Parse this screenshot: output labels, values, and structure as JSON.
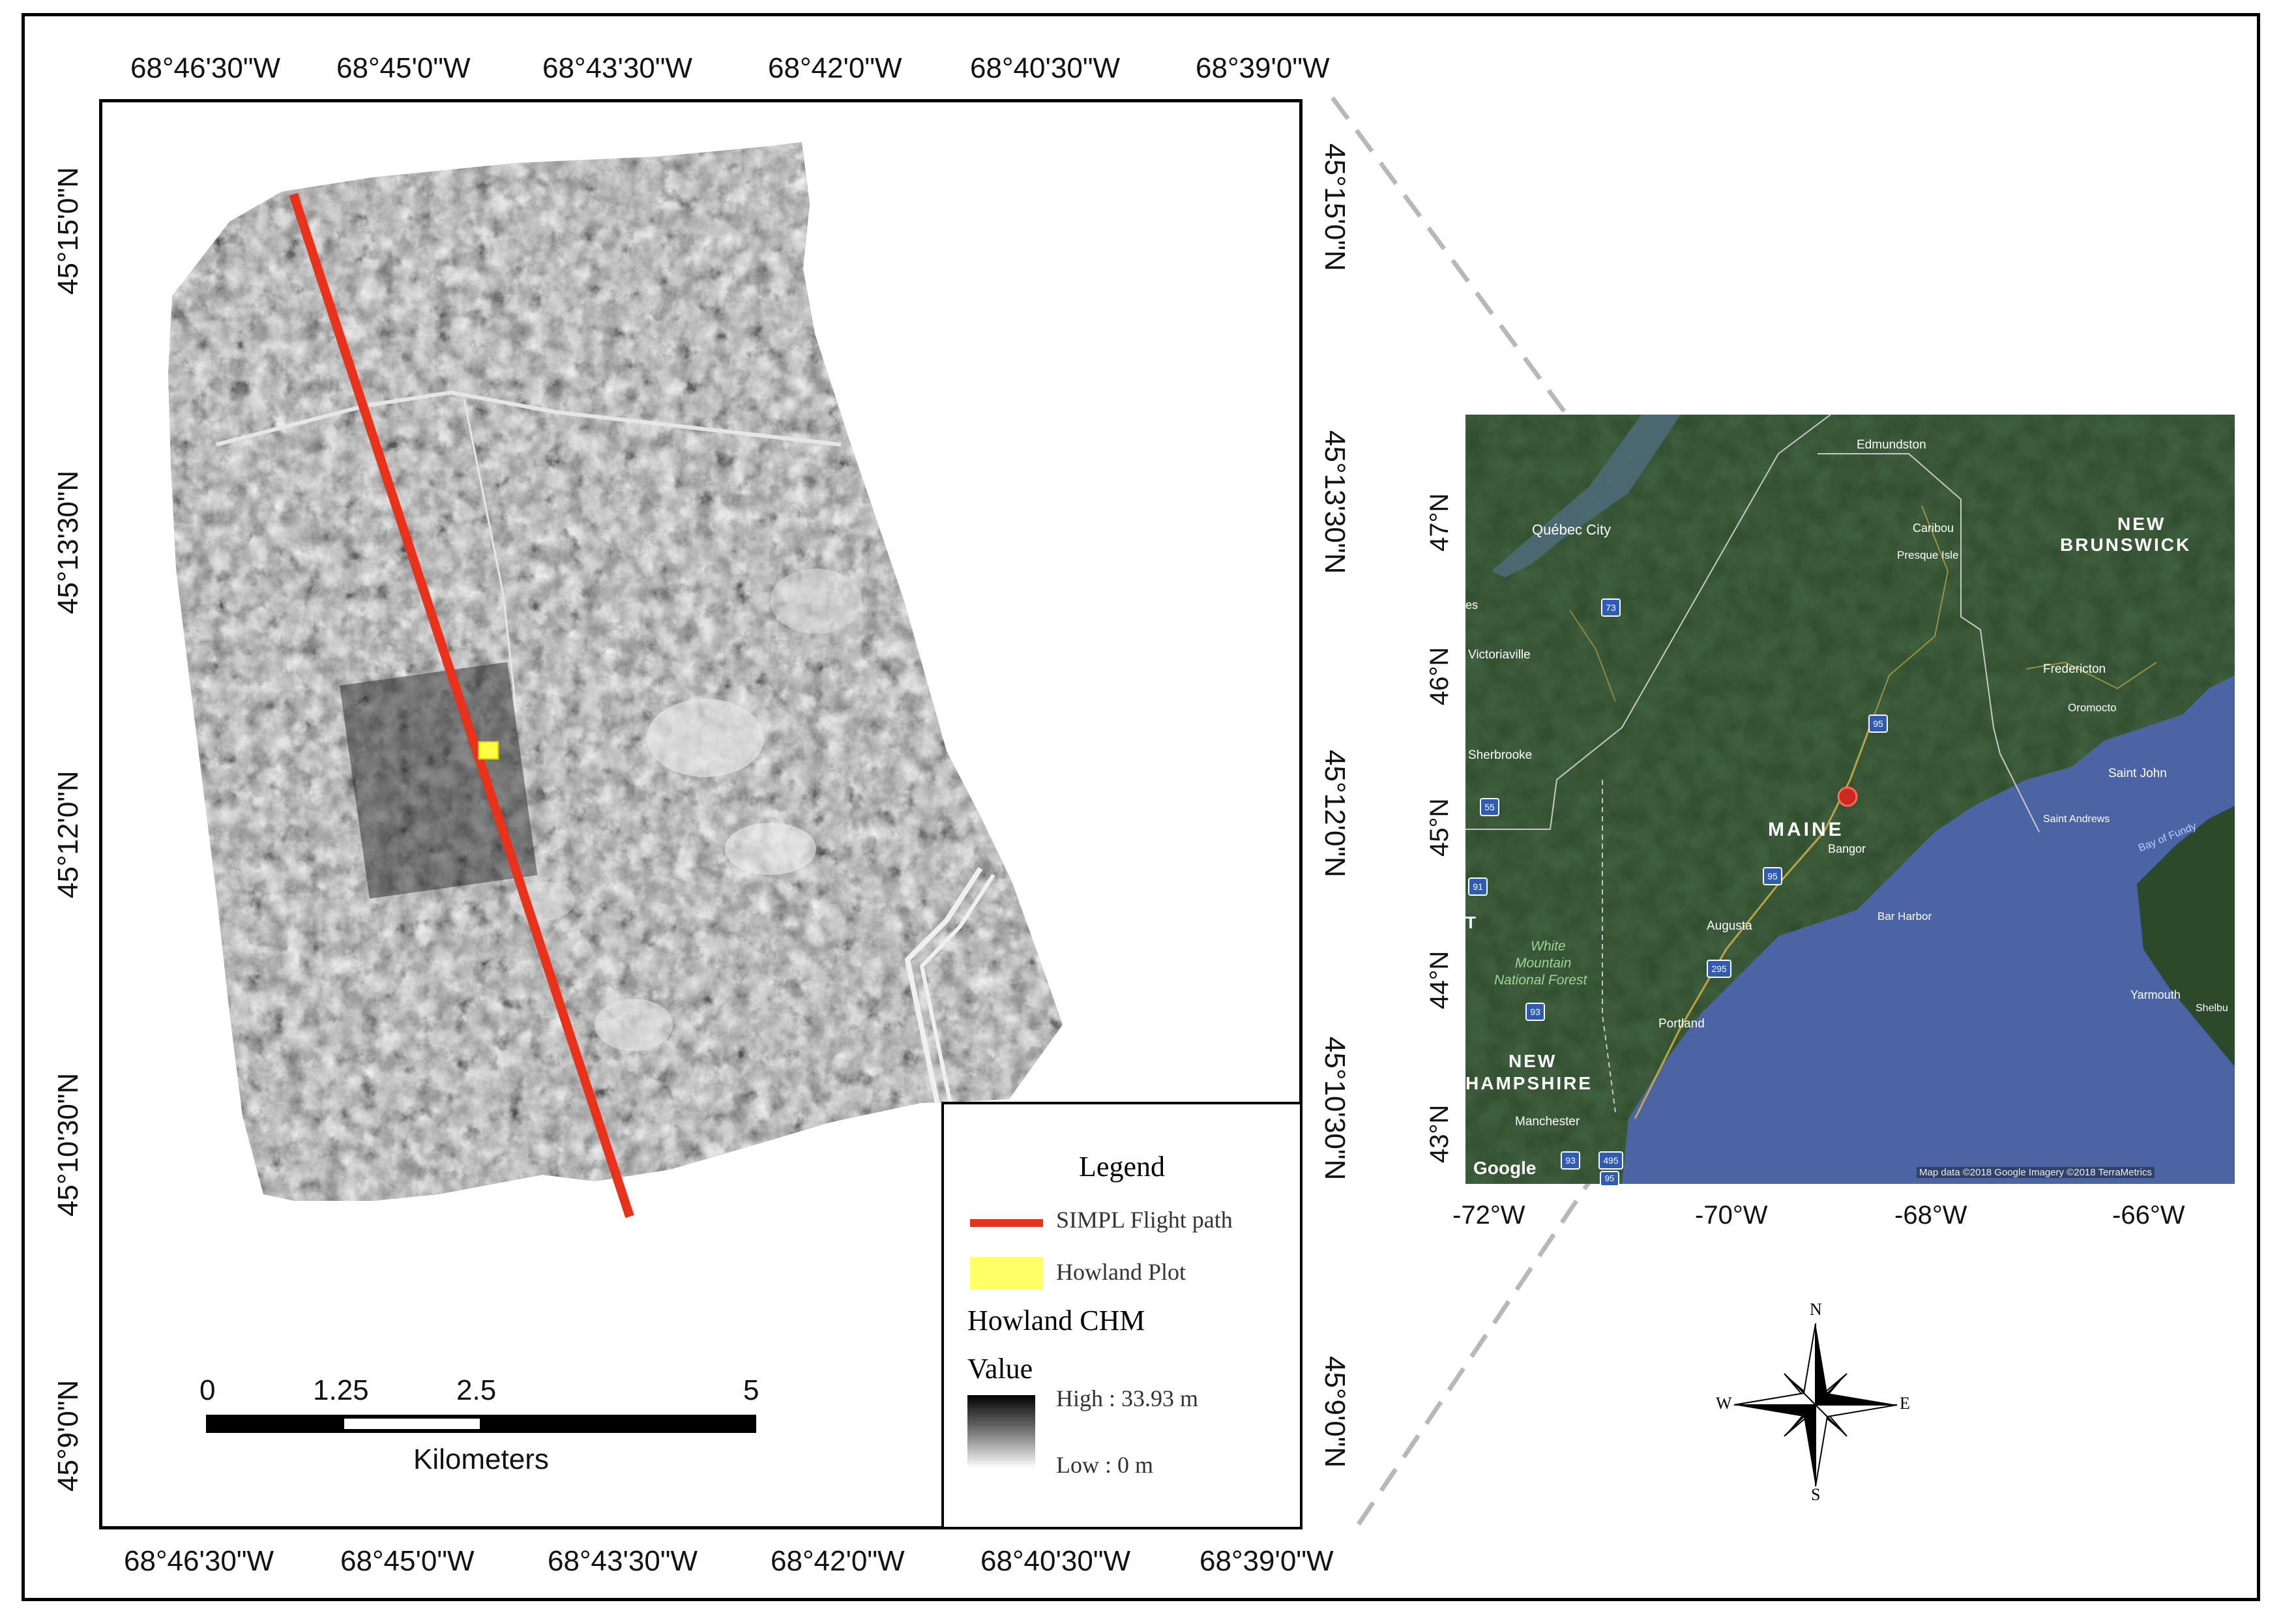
{
  "main_map": {
    "top_lon_labels": [
      "68°46'30\"W",
      "68°45'0\"W",
      "68°43'30\"W",
      "68°42'0\"W",
      "68°40'30\"W",
      "68°39'0\"W"
    ],
    "bottom_lon_labels": [
      "68°46'30\"W",
      "68°45'0\"W",
      "68°43'30\"W",
      "68°42'0\"W",
      "68°40'30\"W",
      "68°39'0\"W"
    ],
    "lat_labels": [
      "45°15'0\"N",
      "45°13'30\"N",
      "45°12'0\"N",
      "45°10'30\"N",
      "45°9'0\"N"
    ]
  },
  "legend": {
    "title": "Legend",
    "flight_path_label": "SIMPL Flight path",
    "plot_label": "Howland Plot",
    "chm_title": "Howland CHM",
    "value_label": "Value",
    "high_label": "High : 33.93 m",
    "low_label": "Low : 0 m",
    "flight_path_color": "#e8321b",
    "plot_color": "#ffff66"
  },
  "scale_bar": {
    "ticks": [
      "0",
      "1.25",
      "2.5",
      "5"
    ],
    "units": "Kilometers"
  },
  "inset_map": {
    "lon_labels": [
      "-72°W",
      "-70°W",
      "-68°W",
      "-66°W"
    ],
    "lat_labels": [
      "47°N",
      "46°N",
      "45°N",
      "44°N",
      "43°N"
    ],
    "places": {
      "edmundston": "Edmundston",
      "quebec_city": "Québec City",
      "caribou": "Caribou",
      "presque_isle": "Presque Isle",
      "new": "NEW",
      "brunswick": "BRUNSWICK",
      "es": "es",
      "victoriaville": "Victoriaville",
      "fredericton": "Fredericton",
      "oromocto": "Oromocto",
      "sherbrooke": "Sherbrooke",
      "saint_john": "Saint John",
      "saint_andrews": "Saint Andrews",
      "bay_of_fundy": "Bay of Fundy",
      "maine": "MAINE",
      "bangor": "Bangor",
      "t": "T",
      "augusta": "Augusta",
      "bar_harbor": "Bar Harbor",
      "white_mountain_1": "White",
      "white_mountain_2": "Mountain",
      "white_mountain_3": "National Forest",
      "yarmouth": "Yarmouth",
      "shelbu": "Shelbu",
      "portland": "Portland",
      "new_hampshire_1": "NEW",
      "new_hampshire_2": "HAMPSHIRE",
      "manchester": "Manchester",
      "google": "Google",
      "attribution": "Map data ©2018 Google  Imagery ©2018 TerraMetrics"
    },
    "highways": [
      "73",
      "95",
      "55",
      "91",
      "95",
      "295",
      "93",
      "93",
      "495",
      "95"
    ],
    "land_color": "#2c4a2a",
    "water_color": "#4a64a4",
    "site_color": "#cc2a1e"
  },
  "compass": {
    "n": "N",
    "s": "S",
    "e": "E",
    "w": "W"
  }
}
